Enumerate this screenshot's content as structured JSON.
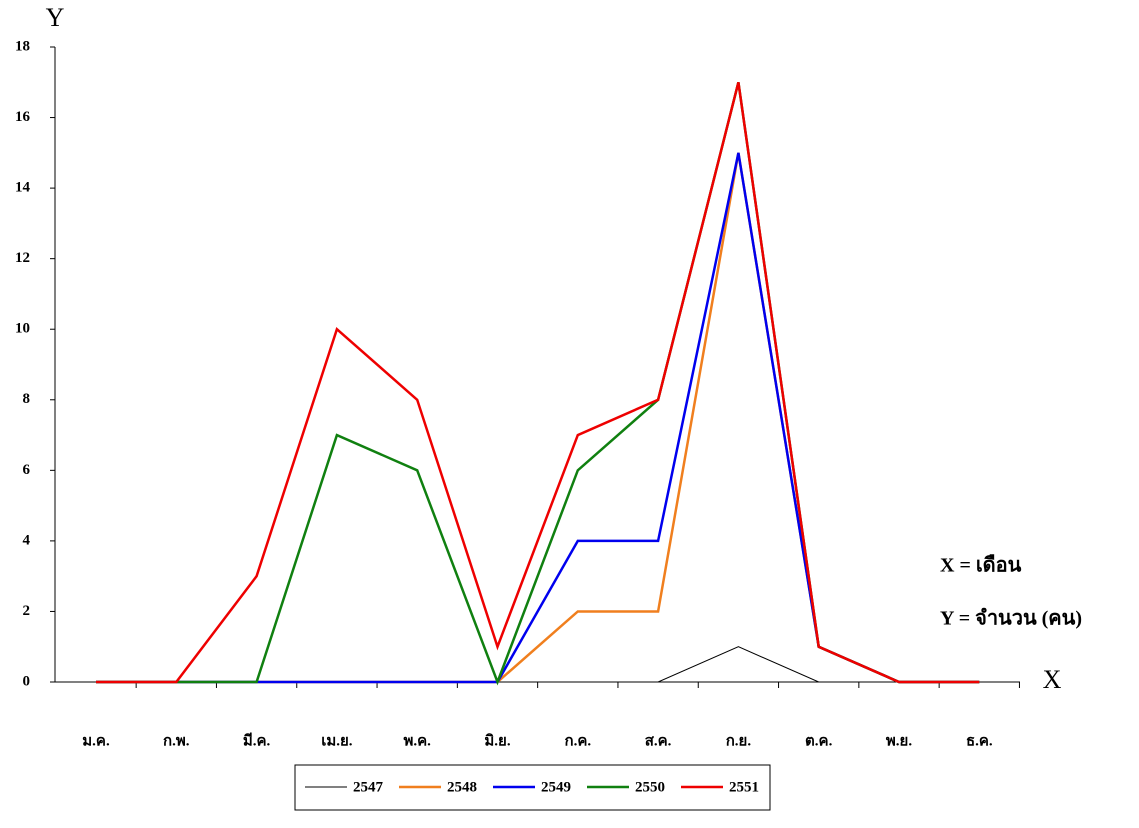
{
  "chart_data": {
    "type": "line",
    "x_label": "X",
    "y_label": "Y",
    "annotations": [
      "X = เดือน",
      "Y = จำนวน (คน)"
    ],
    "categories": [
      "ม.ค.",
      "ก.พ.",
      "มี.ค.",
      "เม.ย.",
      "พ.ค.",
      "มิ.ย.",
      "ก.ค.",
      "ส.ค.",
      "ก.ย.",
      "ต.ค.",
      "พ.ย.",
      "ธ.ค."
    ],
    "series": [
      {
        "name": "2547",
        "color": "#000000",
        "values": [
          0,
          0,
          0,
          0,
          0,
          0,
          0,
          0,
          1,
          0,
          0,
          0
        ]
      },
      {
        "name": "2548",
        "color": "#f07f1e",
        "values": [
          0,
          0,
          0,
          0,
          0,
          0,
          2,
          2,
          15,
          1,
          0,
          0
        ]
      },
      {
        "name": "2549",
        "color": "#0000ee",
        "values": [
          0,
          0,
          0,
          0,
          0,
          0,
          4,
          4,
          15,
          1,
          0,
          0
        ]
      },
      {
        "name": "2550",
        "color": "#108010",
        "values": [
          0,
          0,
          0,
          7,
          6,
          0,
          6,
          8,
          17,
          1,
          0,
          0
        ]
      },
      {
        "name": "2551",
        "color": "#ee0000",
        "values": [
          0,
          0,
          3,
          10,
          8,
          1,
          7,
          8,
          17,
          1,
          0,
          0
        ]
      }
    ],
    "ylim": [
      0,
      18
    ],
    "yticks": [
      0,
      2,
      4,
      6,
      8,
      10,
      12,
      14,
      16,
      18
    ],
    "grid": false
  }
}
